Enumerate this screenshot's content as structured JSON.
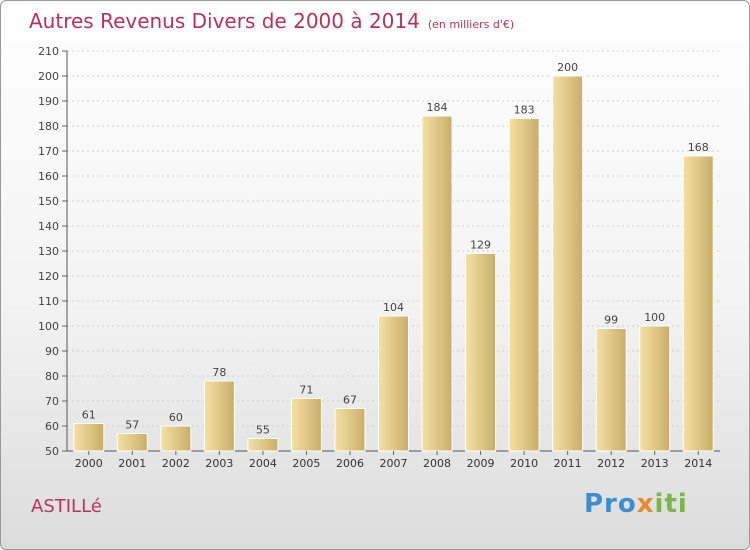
{
  "header": {
    "title": "Autres Revenus Divers de 2000 à 2014",
    "subtitle": "(en milliers d'€)"
  },
  "footer": {
    "place": "ASTILLé",
    "logo": [
      "Pro",
      "x",
      "iti"
    ]
  },
  "colors": {
    "title": "#b8325a",
    "bar_light": "#f5e0a4",
    "bar_dark": "#c9ae6a",
    "grid": "#d0d0d0"
  },
  "chart_data": {
    "type": "bar",
    "title": "Autres Revenus Divers de 2000 à 2014",
    "subtitle": "(en milliers d'€)",
    "categories": [
      "2000",
      "2001",
      "2002",
      "2003",
      "2004",
      "2005",
      "2006",
      "2007",
      "2008",
      "2009",
      "2010",
      "2011",
      "2012",
      "2013",
      "2014"
    ],
    "values": [
      61,
      57,
      60,
      78,
      55,
      71,
      67,
      104,
      184,
      129,
      183,
      200,
      99,
      100,
      168
    ],
    "ylim": [
      50,
      210
    ],
    "yticks": [
      50,
      60,
      70,
      80,
      90,
      100,
      110,
      120,
      130,
      140,
      150,
      160,
      170,
      180,
      190,
      200,
      210
    ],
    "grid": true,
    "data_labels": true
  }
}
